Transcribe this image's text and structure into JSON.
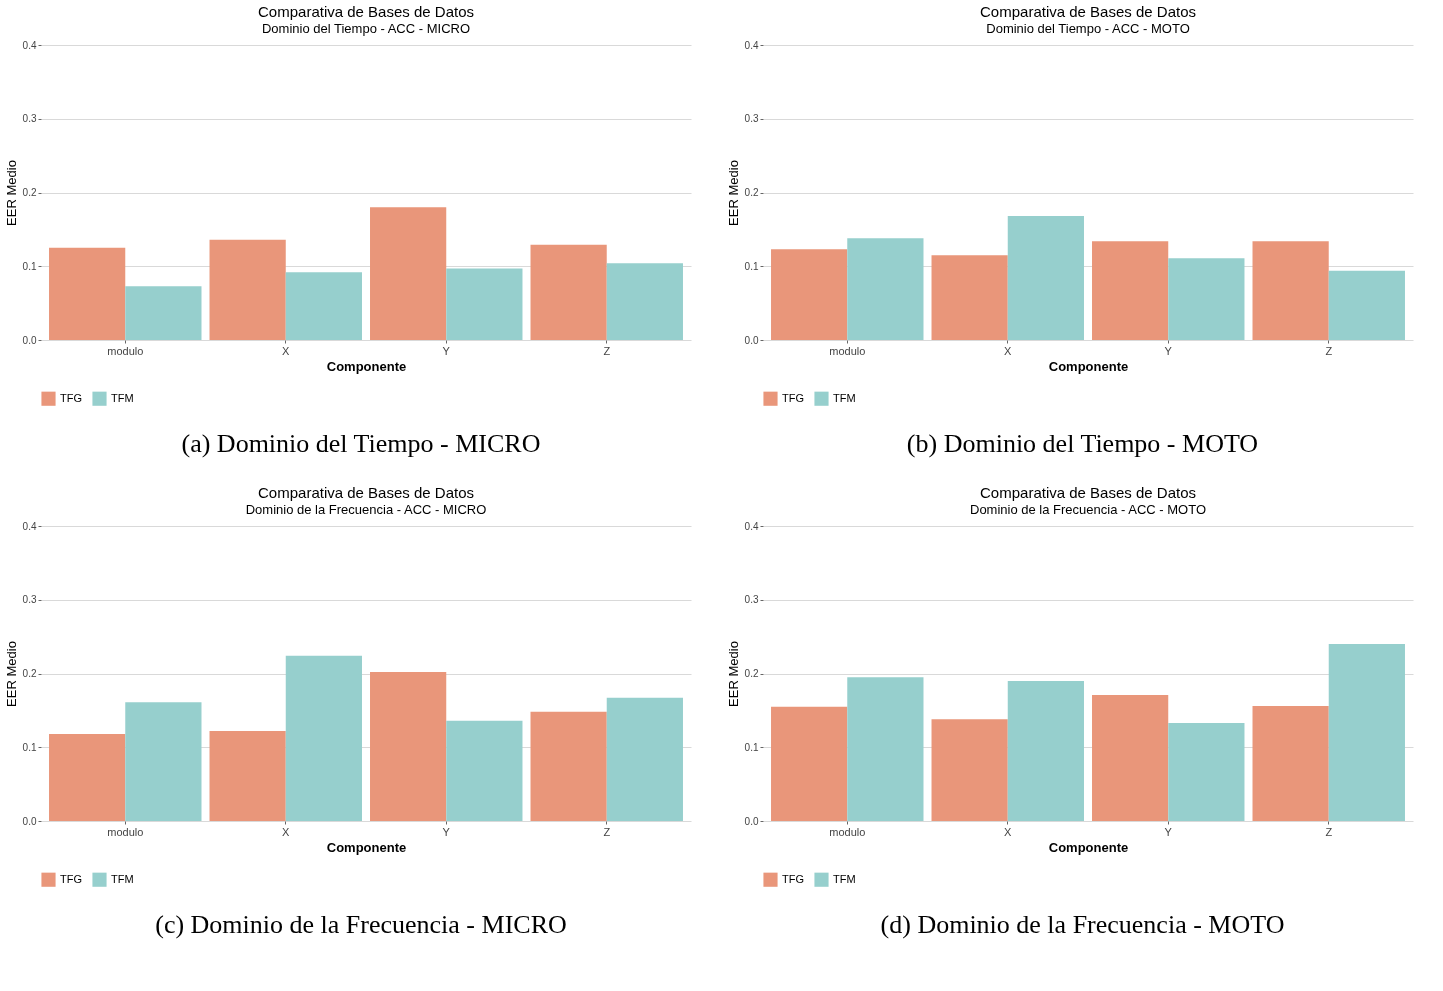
{
  "chart_data": [
    {
      "type": "bar",
      "title": "Comparativa de Bases de Datos",
      "subtitle": "Dominio del Tiempo - ACC - MICRO",
      "xlabel": "Componente",
      "ylabel": "EER Medio",
      "categories": [
        "modulo",
        "X",
        "Y",
        "Z"
      ],
      "series": [
        {
          "name": "TFG",
          "color": "#e9967a",
          "values": [
            0.125,
            0.136,
            0.18,
            0.129
          ]
        },
        {
          "name": "TFM",
          "color": "#96cfcd",
          "values": [
            0.073,
            0.092,
            0.097,
            0.104
          ]
        }
      ],
      "ylim": [
        0,
        0.4
      ],
      "yticks": [
        {
          "value": 0,
          "label": "0.0"
        },
        {
          "value": 0.1,
          "label": "0.1"
        },
        {
          "value": 0.2,
          "label": "0.2"
        },
        {
          "value": 0.3,
          "label": "0.3"
        },
        {
          "value": 0.4,
          "label": "0.4"
        }
      ],
      "grid": "y",
      "legend": "bottom",
      "annotations": [
        "(a) Dominio del Tiempo - MICRO"
      ]
    },
    {
      "type": "bar",
      "title": "Comparativa de Bases de Datos",
      "subtitle": "Dominio del Tiempo - ACC - MOTO",
      "xlabel": "Componente",
      "ylabel": "EER Medio",
      "categories": [
        "modulo",
        "X",
        "Y",
        "Z"
      ],
      "series": [
        {
          "name": "TFG",
          "color": "#e9967a",
          "values": [
            0.123,
            0.115,
            0.134,
            0.134
          ]
        },
        {
          "name": "TFM",
          "color": "#96cfcd",
          "values": [
            0.138,
            0.168,
            0.111,
            0.094
          ]
        }
      ],
      "ylim": [
        0,
        0.4
      ],
      "yticks": [
        {
          "value": 0,
          "label": "0.0"
        },
        {
          "value": 0.1,
          "label": "0.1"
        },
        {
          "value": 0.2,
          "label": "0.2"
        },
        {
          "value": 0.3,
          "label": "0.3"
        },
        {
          "value": 0.4,
          "label": "0.4"
        }
      ],
      "grid": "y",
      "legend": "bottom",
      "annotations": [
        "(b) Dominio del Tiempo - MOTO"
      ]
    },
    {
      "type": "bar",
      "title": "Comparativa de Bases de Datos",
      "subtitle": "Dominio de la Frecuencia - ACC - MICRO",
      "xlabel": "Componente",
      "ylabel": "EER Medio",
      "categories": [
        "modulo",
        "X",
        "Y",
        "Z"
      ],
      "series": [
        {
          "name": "TFG",
          "color": "#e9967a",
          "values": [
            0.118,
            0.122,
            0.202,
            0.148
          ]
        },
        {
          "name": "TFM",
          "color": "#96cfcd",
          "values": [
            0.161,
            0.224,
            0.136,
            0.167
          ]
        }
      ],
      "ylim": [
        0,
        0.4
      ],
      "yticks": [
        {
          "value": 0,
          "label": "0.0"
        },
        {
          "value": 0.1,
          "label": "0.1"
        },
        {
          "value": 0.2,
          "label": "0.2"
        },
        {
          "value": 0.3,
          "label": "0.3"
        },
        {
          "value": 0.4,
          "label": "0.4"
        }
      ],
      "grid": "y",
      "legend": "bottom",
      "annotations": [
        "(c) Dominio de la Frecuencia - MICRO"
      ]
    },
    {
      "type": "bar",
      "title": "Comparativa de Bases de Datos",
      "subtitle": "Dominio de la Frecuencia - ACC - MOTO",
      "xlabel": "Componente",
      "ylabel": "EER Medio",
      "categories": [
        "modulo",
        "X",
        "Y",
        "Z"
      ],
      "series": [
        {
          "name": "TFG",
          "color": "#e9967a",
          "values": [
            0.155,
            0.138,
            0.171,
            0.156
          ]
        },
        {
          "name": "TFM",
          "color": "#96cfcd",
          "values": [
            0.195,
            0.19,
            0.133,
            0.24
          ]
        }
      ],
      "ylim": [
        0,
        0.4
      ],
      "yticks": [
        {
          "value": 0,
          "label": "0.0"
        },
        {
          "value": 0.1,
          "label": "0.1"
        },
        {
          "value": 0.2,
          "label": "0.2"
        },
        {
          "value": 0.3,
          "label": "0.3"
        },
        {
          "value": 0.4,
          "label": "0.4"
        }
      ],
      "grid": "y",
      "legend": "bottom",
      "annotations": [
        "(d) Dominio de la Frecuencia - MOTO"
      ]
    }
  ]
}
